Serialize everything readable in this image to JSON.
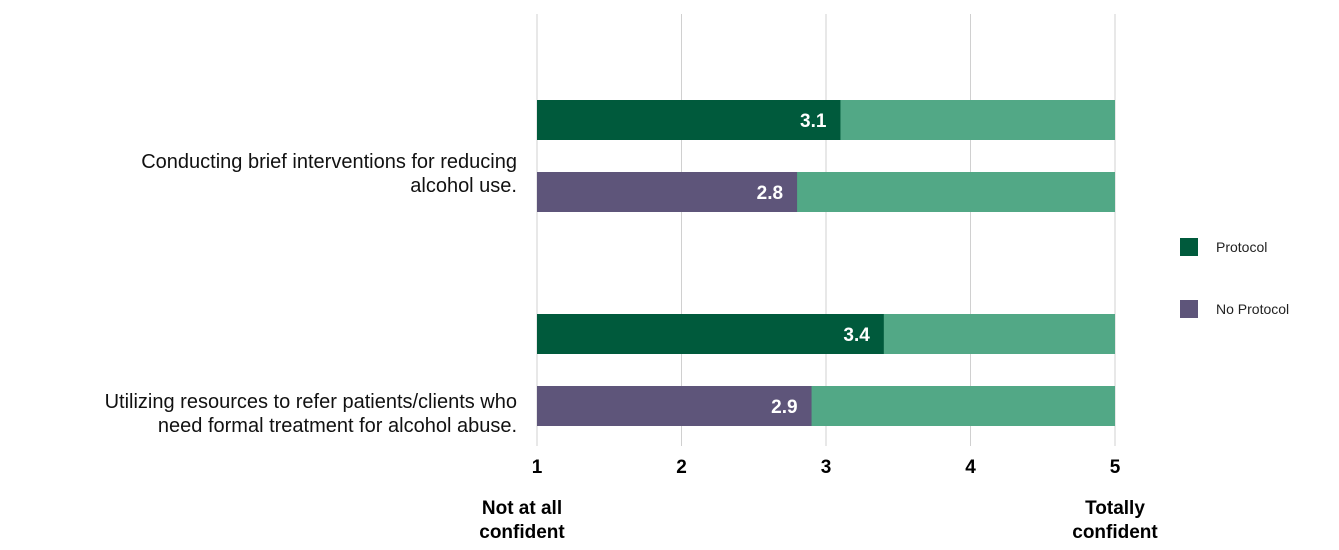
{
  "chart_data": {
    "type": "bar",
    "orientation": "horizontal",
    "stacked_to_max": true,
    "categories": [
      "Conducting brief interventions for reducing alcohol use.",
      "Utilizing resources to refer patients/clients who need formal treatment for alcohol abuse."
    ],
    "series": [
      {
        "name": "Protocol",
        "values": [
          3.1,
          3.4
        ],
        "color": "#005a3c"
      },
      {
        "name": "No Protocol",
        "values": [
          2.8,
          2.9
        ],
        "color": "#5e557a"
      }
    ],
    "remainder_color": "#52a886",
    "xlim": [
      1,
      5
    ],
    "xticks": [
      "1",
      "2",
      "3",
      "4",
      "5"
    ],
    "x_end_labels": {
      "left": "Not at all confident",
      "right": "Totally confident"
    },
    "grid": true,
    "legend": "right"
  },
  "labels": {
    "cat0_line1": "Conducting brief interventions for reducing",
    "cat0_line2": "alcohol use.",
    "cat1_line1": "Utilizing resources to refer patients/clients who",
    "cat1_line2": "need formal treatment for alcohol abuse.",
    "left_end_line1": "Not at all",
    "left_end_line2": "confident",
    "right_end_line1": "Totally",
    "right_end_line2": "confident",
    "legend_protocol": "Protocol",
    "legend_no_protocol": "No Protocol"
  }
}
